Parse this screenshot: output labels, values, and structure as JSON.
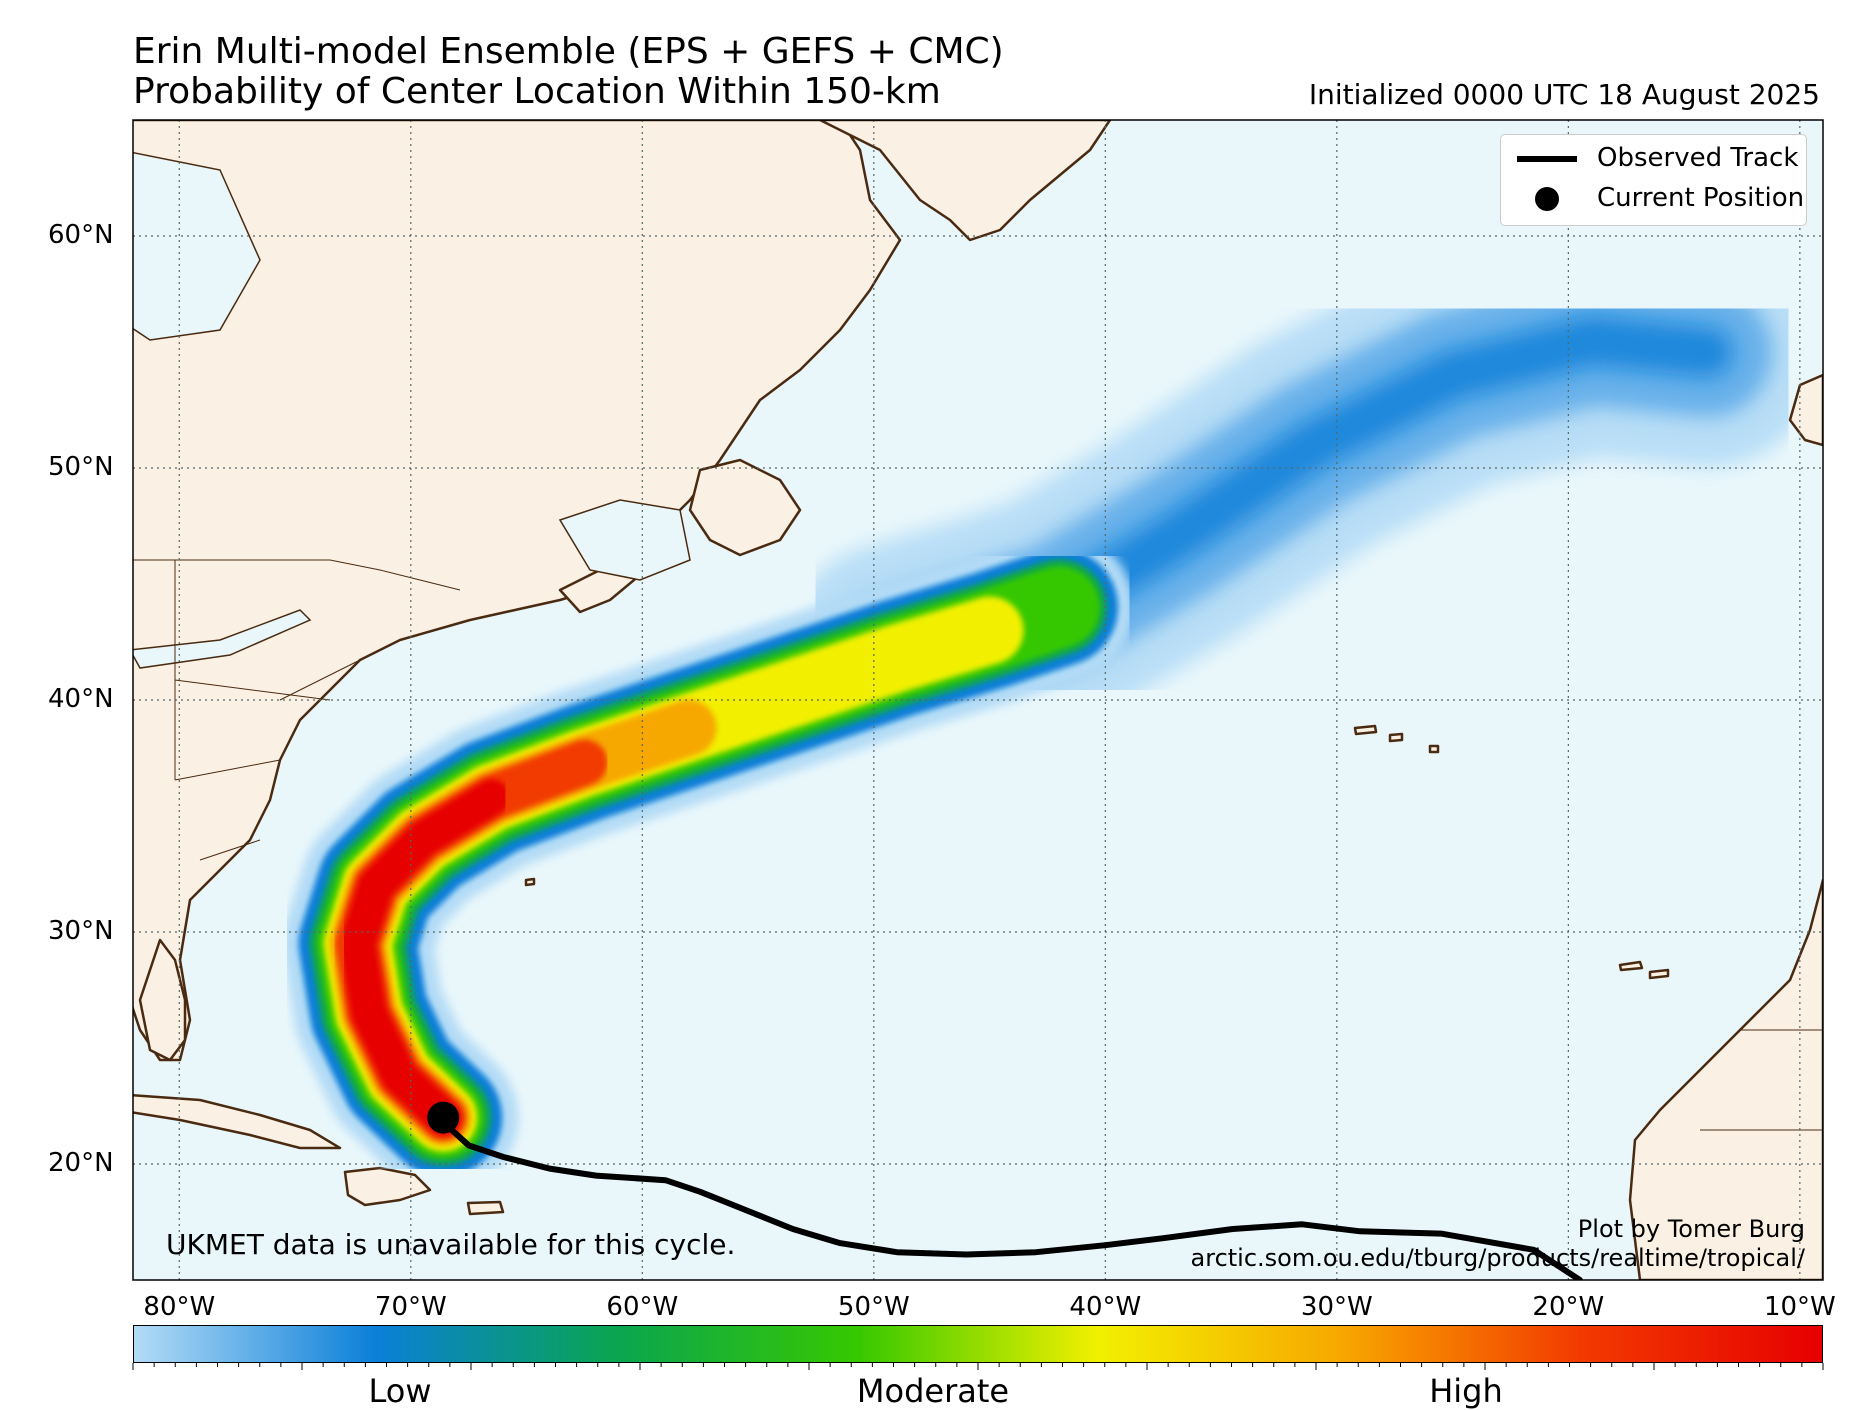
{
  "title": {
    "line1": "Erin Multi-model Ensemble (EPS + GEFS + CMC)",
    "line2": "Probability of Center Location Within 150-km",
    "initialized": "Initialized 0000 UTC 18 August 2025"
  },
  "map": {
    "lon_range": [
      -82,
      -9
    ],
    "lat_range": [
      15,
      65
    ],
    "lat_ticks": [
      "60°N",
      "50°N",
      "40°N",
      "30°N",
      "20°N"
    ],
    "lon_ticks": [
      "80°W",
      "70°W",
      "60°W",
      "50°W",
      "40°W",
      "30°W",
      "20°W",
      "10°W"
    ],
    "ocean_color": "#e9f7fb",
    "land_color": "#faf1e4",
    "coast_color": "#4a2a10",
    "grid": "dotted"
  },
  "legend": {
    "observed_track": "Observed Track",
    "current_position": "Current Position"
  },
  "colorbar": {
    "colors": [
      "#b3dbf6",
      "#0b7fd8",
      "#0aa550",
      "#36c800",
      "#f2f000",
      "#f7a800",
      "#f23a00",
      "#e60000"
    ],
    "low": "Low",
    "moderate": "Moderate",
    "high": "High"
  },
  "annotations": {
    "ukmet_note": "UKMET data is unavailable for this cycle.",
    "credit_line1": "Plot by Tomer Burg",
    "credit_line2": "arctic.som.ou.edu/tburg/products/realtime/tropical/"
  },
  "observed_track": [
    [
      -19.5,
      15.0
    ],
    [
      -21.5,
      16.3
    ],
    [
      -25.5,
      17.0
    ],
    [
      -29.0,
      17.1
    ],
    [
      -31.5,
      17.4
    ],
    [
      -34.5,
      17.2
    ],
    [
      -37.5,
      16.8
    ],
    [
      -40.0,
      16.5
    ],
    [
      -43.0,
      16.2
    ],
    [
      -46.0,
      16.1
    ],
    [
      -49.0,
      16.2
    ],
    [
      -51.5,
      16.6
    ],
    [
      -53.5,
      17.2
    ],
    [
      -55.5,
      18.0
    ],
    [
      -57.5,
      18.8
    ],
    [
      -59.0,
      19.3
    ],
    [
      -62.0,
      19.5
    ],
    [
      -64.0,
      19.8
    ],
    [
      -66.0,
      20.3
    ],
    [
      -67.5,
      20.8
    ],
    [
      -68.6,
      21.8
    ]
  ],
  "current_position": [
    -68.6,
    22.0
  ],
  "probability_swath": {
    "centerline": [
      [
        -68.6,
        22.0
      ],
      [
        -70.5,
        23.8
      ],
      [
        -71.8,
        26.5
      ],
      [
        -72.3,
        29.5
      ],
      [
        -71.5,
        32.0
      ],
      [
        -69.5,
        34.0
      ],
      [
        -66.5,
        35.8
      ],
      [
        -62.5,
        37.3
      ],
      [
        -58.0,
        38.8
      ],
      [
        -53.5,
        40.3
      ],
      [
        -49.0,
        41.8
      ],
      [
        -45.0,
        43.0
      ],
      [
        -42.0,
        44.0
      ]
    ],
    "high_until_index": 7,
    "moderate_until_index": 12,
    "spread_centerline": [
      [
        -42.0,
        44.0
      ],
      [
        -37.0,
        47.0
      ],
      [
        -31.0,
        51.0
      ],
      [
        -25.0,
        54.0
      ],
      [
        -19.0,
        55.5
      ],
      [
        -14.0,
        55.0
      ]
    ]
  }
}
